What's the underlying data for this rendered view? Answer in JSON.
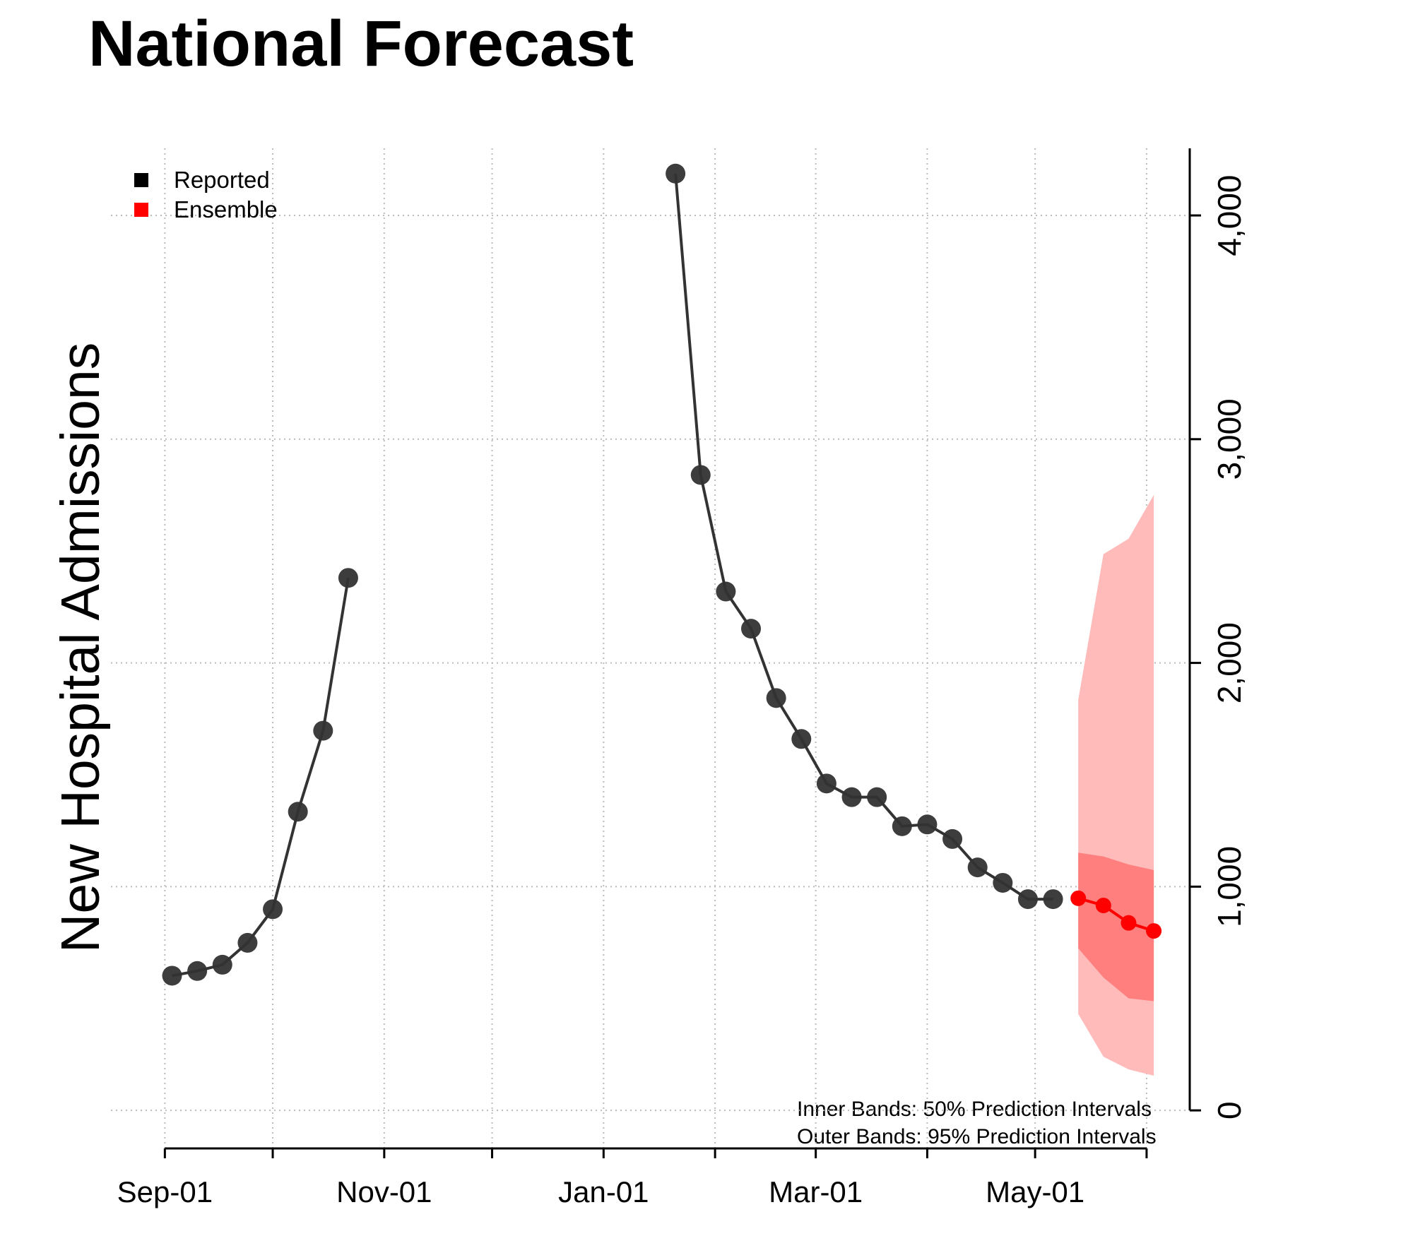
{
  "chart_data": {
    "type": "line",
    "title": "National Forecast",
    "y_label": "New Hospital Admissions",
    "annotations": [
      "Inner Bands: 50% Prediction Intervals",
      "Outer Bands: 95% Prediction Intervals"
    ],
    "xlim": [
      "08-17",
      "06-13"
    ],
    "xticks": [
      {
        "value": "09-01",
        "label": "Sep-01"
      },
      {
        "value": "10-01",
        "label": null
      },
      {
        "value": "11-01",
        "label": "Nov-01"
      },
      {
        "value": "12-01",
        "label": null
      },
      {
        "value": "01-01",
        "label": "Jan-01"
      },
      {
        "value": "02-01",
        "label": null
      },
      {
        "value": "03-01",
        "label": "Mar-01"
      },
      {
        "value": "04-01",
        "label": null
      },
      {
        "value": "05-01",
        "label": "May-01"
      },
      {
        "value": "06-01",
        "label": null
      }
    ],
    "ylim": [
      -170,
      4300
    ],
    "yticks": [
      0,
      {
        "value": 1000,
        "label": "1,000"
      },
      {
        "value": 2000,
        "label": "2,000"
      },
      {
        "value": 3000,
        "label": "3,000"
      },
      {
        "value": 4000,
        "label": "4,000"
      }
    ],
    "grid": true,
    "legend": "top-left",
    "series": [
      {
        "name": "Reported",
        "color": "#333333",
        "x": [
          "09-03",
          "09-10",
          "09-17",
          "09-24",
          "10-01",
          "10-08",
          "10-15",
          "10-22",
          "10-29",
          "11-05",
          "11-12",
          "11-19",
          "11-26",
          "12-03",
          "12-10",
          "12-17",
          "12-24",
          "12-31",
          "01-07",
          "01-14",
          "01-21",
          "01-28",
          "02-04",
          "02-11",
          "02-18",
          "02-25",
          "03-04",
          "03-11",
          "03-18",
          "03-25",
          "04-01",
          "04-08",
          "04-15",
          "04-22",
          "04-29",
          "05-06"
        ],
        "values": [
          602,
          623,
          651,
          749,
          899,
          1335,
          1697,
          2380,
          null,
          null,
          null,
          null,
          null,
          null,
          null,
          null,
          null,
          null,
          null,
          null,
          4187,
          2840,
          2319,
          2153,
          1843,
          1660,
          1461,
          1400,
          1400,
          1270,
          1278,
          1213,
          1086,
          1017,
          944,
          944
        ]
      },
      {
        "name": "Ensemble",
        "color": "#ff0000",
        "x": [
          "05-13",
          "05-20",
          "05-27",
          "06-03"
        ],
        "values": [
          948,
          916,
          838,
          802
        ],
        "intervals": [
          {
            "level": 95,
            "color": "#ffbaba",
            "lower": [
              431,
              240,
              183,
              155
            ],
            "upper": [
              1835,
              2486,
              2555,
              2751
            ]
          },
          {
            "level": 50,
            "color": "#ff7f7f",
            "lower": [
              724,
              594,
              501,
              488
            ],
            "upper": [
              1152,
              1135,
              1099,
              1074
            ]
          }
        ]
      }
    ]
  }
}
